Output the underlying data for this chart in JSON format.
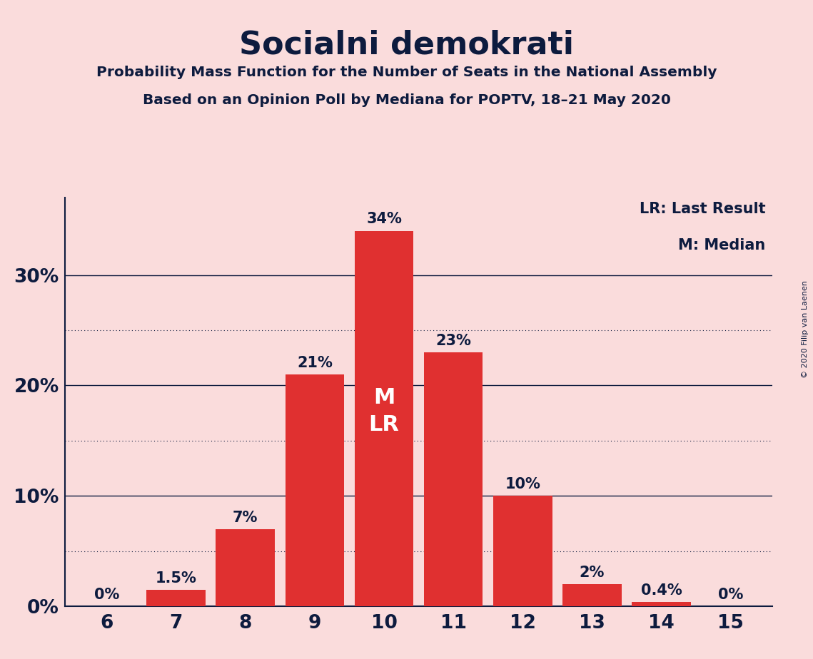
{
  "title": "Socialni demokrati",
  "subtitle1": "Probability Mass Function for the Number of Seats in the National Assembly",
  "subtitle2": "Based on an Opinion Poll by Mediana for POPTV, 18–21 May 2020",
  "copyright": "© 2020 Filip van Laenen",
  "categories": [
    6,
    7,
    8,
    9,
    10,
    11,
    12,
    13,
    14,
    15
  ],
  "values": [
    0.0,
    1.5,
    7.0,
    21.0,
    34.0,
    23.0,
    10.0,
    2.0,
    0.4,
    0.0
  ],
  "labels": [
    "0%",
    "1.5%",
    "7%",
    "21%",
    "34%",
    "23%",
    "10%",
    "2%",
    "0.4%",
    "0%"
  ],
  "bar_color": "#E03030",
  "background_color": "#FADCDC",
  "text_color": "#0D1B3E",
  "median_bar": 10,
  "last_result_bar": 10,
  "median_label": "M",
  "last_result_label": "LR",
  "inside_label_color": "#FFFFFF",
  "yticks": [
    0,
    10,
    20,
    30
  ],
  "dotted_lines": [
    5,
    15,
    25
  ],
  "solid_lines": [
    10,
    20,
    30
  ],
  "ylim": [
    0,
    37
  ],
  "legend_lr": "LR: Last Result",
  "legend_m": "M: Median"
}
